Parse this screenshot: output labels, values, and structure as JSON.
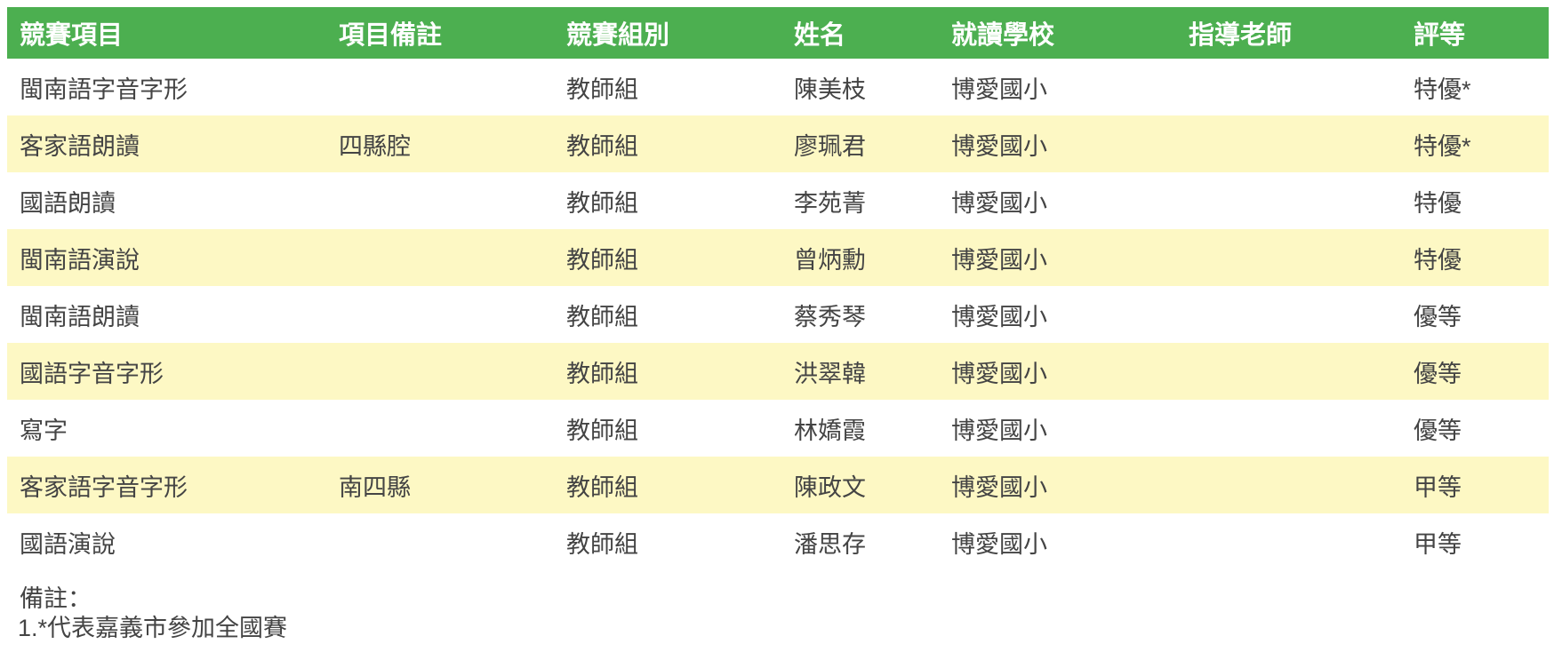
{
  "table": {
    "header_bg": "#4caf50",
    "header_text_color": "#ffffff",
    "alt_row_bg": "#fdf8c4",
    "body_text_color": "#444444",
    "columns": [
      {
        "key": "event",
        "label": "競賽項目"
      },
      {
        "key": "remark",
        "label": "項目備註"
      },
      {
        "key": "group",
        "label": "競賽組別"
      },
      {
        "key": "name",
        "label": "姓名"
      },
      {
        "key": "school",
        "label": "就讀學校"
      },
      {
        "key": "advisor",
        "label": "指導老師"
      },
      {
        "key": "grade",
        "label": "評等"
      }
    ],
    "rows": [
      [
        "閩南語字音字形",
        "",
        "教師組",
        "陳美枝",
        "博愛國小",
        "",
        "特優*"
      ],
      [
        "客家語朗讀",
        "四縣腔",
        "教師組",
        "廖珮君",
        "博愛國小",
        "",
        "特優*"
      ],
      [
        "國語朗讀",
        "",
        "教師組",
        "李苑菁",
        "博愛國小",
        "",
        "特優"
      ],
      [
        "閩南語演說",
        "",
        "教師組",
        "曾炳勳",
        "博愛國小",
        "",
        "特優"
      ],
      [
        "閩南語朗讀",
        "",
        "教師組",
        "蔡秀琴",
        "博愛國小",
        "",
        "優等"
      ],
      [
        "國語字音字形",
        "",
        "教師組",
        "洪翠韓",
        "博愛國小",
        "",
        "優等"
      ],
      [
        "寫字",
        "",
        "教師組",
        "林嬌霞",
        "博愛國小",
        "",
        "優等"
      ],
      [
        "客家語字音字形",
        "南四縣",
        "教師組",
        "陳政文",
        "博愛國小",
        "",
        "甲等"
      ],
      [
        "國語演說",
        "",
        "教師組",
        "潘思存",
        "博愛國小",
        "",
        "甲等"
      ]
    ]
  },
  "notes": {
    "title": "備註：",
    "items": [
      "1.*代表嘉義市參加全國賽"
    ]
  }
}
